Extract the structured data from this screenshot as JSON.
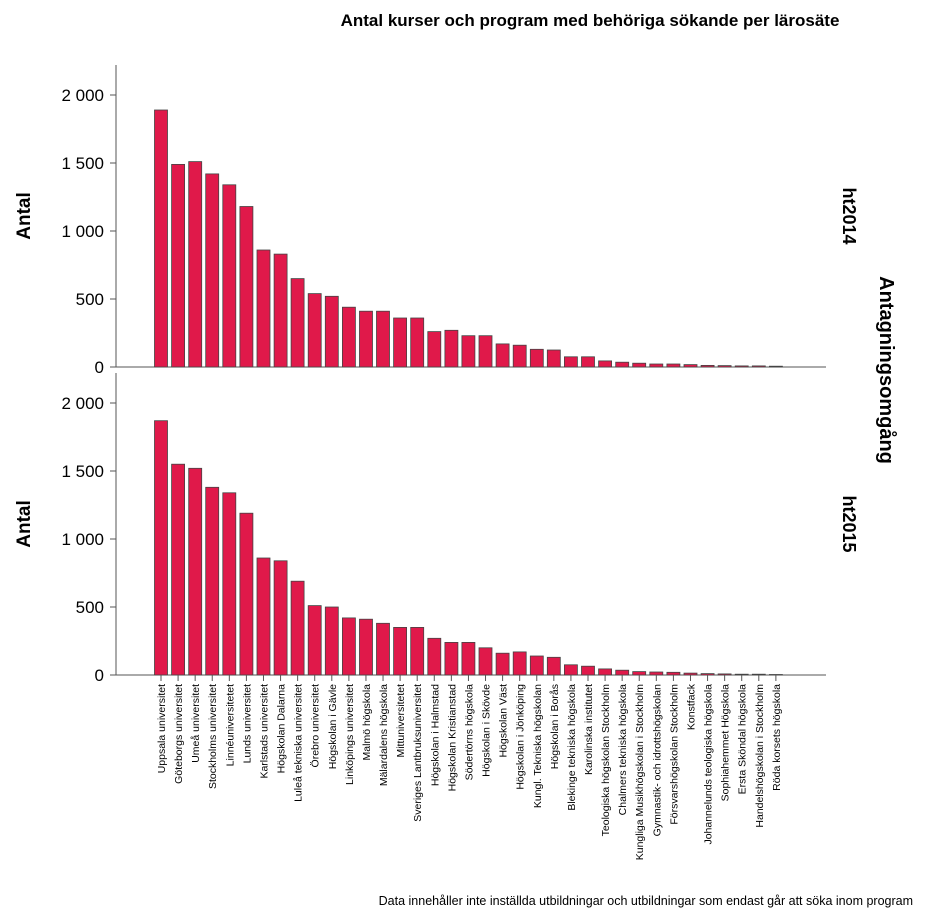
{
  "chart_data": {
    "type": "bar",
    "title": "Antal kurser och program med behöriga sökande per lärosäte",
    "ylabel": "Antal",
    "facet_title": "Antagningsomgång",
    "ylim": [
      0,
      2200
    ],
    "yticks": [
      0,
      500,
      1000,
      1500,
      2000
    ],
    "ytick_labels": [
      "0",
      "500",
      "1 000",
      "1 500",
      "2 000"
    ],
    "bar_color": "#e0194a",
    "categories": [
      "Uppsala universitet",
      "Göteborgs universitet",
      "Umeå universitet",
      "Stockholms universitet",
      "Linnéuniversitetet",
      "Lunds universitet",
      "Karlstads universitet",
      "Högskolan Dalarna",
      "Luleå tekniska universitet",
      "Örebro universitet",
      "Högskolan i Gävle",
      "Linköpings universitet",
      "Malmö högskola",
      "Mälardalens högskola",
      "Mittuniversitetet",
      "Sveriges Lantbruksuniversitet",
      "Högskolan i Halmstad",
      "Högskolan Kristianstad",
      "Södertörns högskola",
      "Högskolan i Skövde",
      "Högskolan Väst",
      "Högskolan i Jönköping",
      "Kungl. Tekniska högskolan",
      "Högskolan i Borås",
      "Blekinge tekniska högskola",
      "Karolinska institutet",
      "Teologiska högskolan Stockholm",
      "Chalmers tekniska högskola",
      "Kungliga Musikhögskolan i Stockholm",
      "Gymnastik- och idrottshögskolan",
      "Försvarshögskolan Stockholm",
      "Konstfack",
      "Johannelunds teologiska högskola",
      "Sophiahemmet Högskola",
      "Ersta Sköndal högskola",
      "Handelshögskolan i Stockholm",
      "Röda korsets högskola"
    ],
    "series": [
      {
        "name": "ht2014",
        "values": [
          1890,
          1490,
          1510,
          1420,
          1340,
          1180,
          860,
          830,
          650,
          540,
          520,
          440,
          410,
          410,
          360,
          360,
          260,
          270,
          230,
          230,
          170,
          160,
          130,
          125,
          75,
          75,
          45,
          35,
          28,
          22,
          22,
          18,
          12,
          10,
          8,
          8,
          6
        ]
      },
      {
        "name": "ht2015",
        "values": [
          1870,
          1550,
          1520,
          1380,
          1340,
          1190,
          860,
          840,
          690,
          510,
          500,
          420,
          410,
          380,
          350,
          350,
          270,
          240,
          240,
          200,
          160,
          170,
          140,
          130,
          75,
          65,
          45,
          35,
          25,
          22,
          20,
          14,
          10,
          8,
          6,
          6,
          4
        ]
      }
    ],
    "footnote": "Data innehåller inte inställda utbildningar och utbildningar som endast går att söka inom program"
  }
}
